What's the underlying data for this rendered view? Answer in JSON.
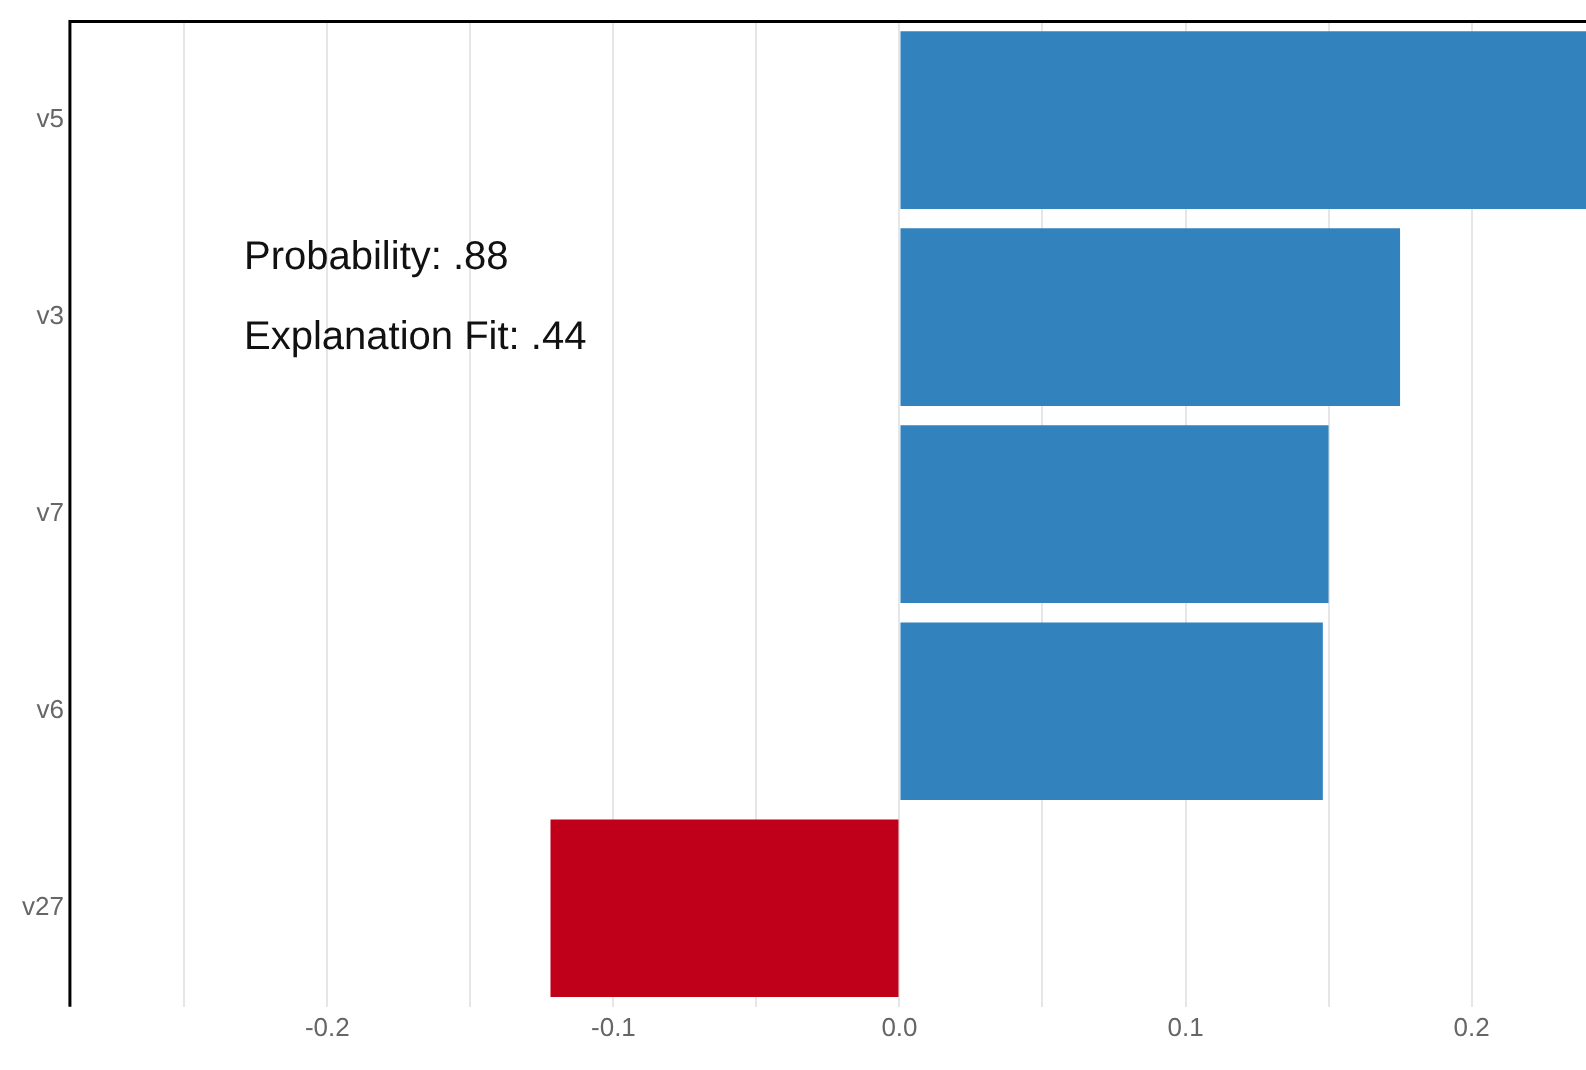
{
  "chart_data": {
    "type": "bar",
    "orientation": "horizontal",
    "categories": [
      "v5",
      "v3",
      "v7",
      "v6",
      "v27"
    ],
    "values": [
      0.24,
      0.175,
      0.15,
      0.148,
      -0.122
    ],
    "colors": [
      "#3182bd",
      "#3182bd",
      "#3182bd",
      "#3182bd",
      "#c0001a"
    ],
    "xlim": [
      -0.29,
      0.24
    ],
    "xticks": [
      {
        "value": -0.25,
        "label": null
      },
      {
        "value": -0.2,
        "label": "-0.2"
      },
      {
        "value": -0.15,
        "label": null
      },
      {
        "value": -0.1,
        "label": "-0.1"
      },
      {
        "value": -0.05,
        "label": null
      },
      {
        "value": 0,
        "label": "0.0"
      },
      {
        "value": 0.05,
        "label": null
      },
      {
        "value": 0.1,
        "label": "0.1"
      },
      {
        "value": 0.15,
        "label": null
      },
      {
        "value": 0.2,
        "label": "0.2"
      }
    ],
    "grid": "x",
    "annotations": [
      "Probability: .88",
      "Explanation Fit: .44"
    ]
  }
}
